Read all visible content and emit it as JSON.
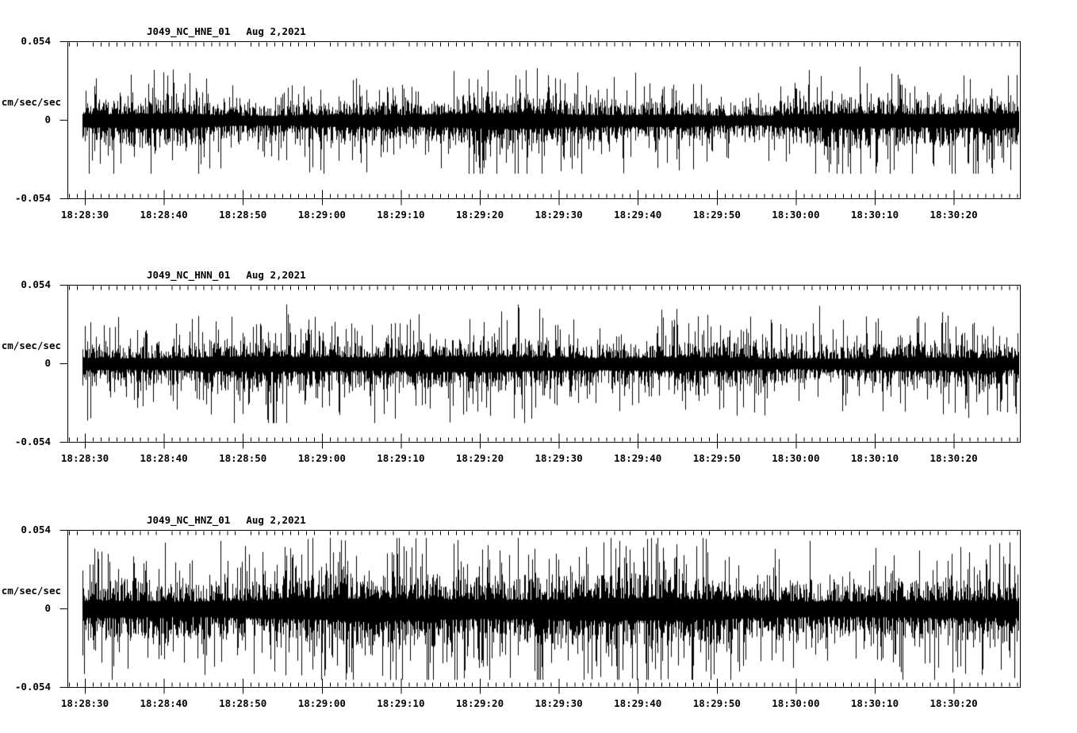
{
  "figure": {
    "background": "#ffffff",
    "ink_color": "#000000"
  },
  "chart_data": {
    "type": "line",
    "subtype": "seismogram-noise-multipanel",
    "panel_count": 3,
    "grid": "off",
    "legend": "none",
    "shared_x": {
      "tick_labels": [
        "18:28:30",
        "18:28:40",
        "18:28:50",
        "18:29:00",
        "18:29:10",
        "18:29:20",
        "18:29:30",
        "18:29:40",
        "18:29:50",
        "18:30:00",
        "18:30:10",
        "18:30:20"
      ],
      "major_interval_sec": 10,
      "minor_interval_sec": 1,
      "window_start": "18:28:28",
      "window_end": "18:30:29"
    },
    "shared_y": {
      "units_label": "cm/sec/sec",
      "tick_labels": [
        "0.054",
        "0",
        "-0.054"
      ],
      "ylim": [
        -0.054,
        0.054
      ]
    },
    "panels": [
      {
        "title": "J049_NC_HNE_01",
        "date_label": "Aug 2,2021",
        "noise_model": {
          "seed": 101,
          "core_amplitude": 0.0085,
          "spike_amplitude": 0.024,
          "spike_probability": 0.32,
          "clip": 0.037,
          "down_skew": 1.22,
          "trace_start_frac": 0.015,
          "envelope": [
            {
              "amp": 0.16,
              "cycles": 2.3,
              "phase": 1.2
            },
            {
              "amp": 0.11,
              "cycles": 5.7,
              "phase": 4.0
            }
          ]
        },
        "notable_spikes": [
          {
            "x_frac": 0.055,
            "value": -0.03
          },
          {
            "x_frac": 0.405,
            "value": 0.034
          },
          {
            "x_frac": 0.47,
            "value": 0.031
          },
          {
            "x_frac": 0.8,
            "value": -0.036
          }
        ]
      },
      {
        "title": "J049_NC_HNN_01",
        "date_label": "Aug 2,2021",
        "noise_model": {
          "seed": 202,
          "core_amplitude": 0.0092,
          "spike_amplitude": 0.026,
          "spike_probability": 0.32,
          "clip": 0.041,
          "down_skew": 1.15,
          "trace_start_frac": 0.015,
          "envelope": [
            {
              "amp": 0.12,
              "cycles": 1.1,
              "phase": -0.8
            },
            {
              "amp": 0.1,
              "cycles": 4.3,
              "phase": 2.6
            }
          ]
        },
        "notable_spikes": [
          {
            "x_frac": 0.38,
            "value": -0.031
          },
          {
            "x_frac": 0.43,
            "value": -0.033
          },
          {
            "x_frac": 0.495,
            "value": 0.038
          },
          {
            "x_frac": 0.79,
            "value": 0.04
          },
          {
            "x_frac": 0.92,
            "value": -0.035
          }
        ]
      },
      {
        "title": "J049_NC_HNZ_01",
        "date_label": "Aug 2,2021",
        "noise_model": {
          "seed": 303,
          "core_amplitude": 0.013,
          "spike_amplitude": 0.034,
          "spike_probability": 0.38,
          "clip": 0.049,
          "down_skew": 1.12,
          "trace_start_frac": 0.015,
          "envelope": [
            {
              "amp": 0.15,
              "cycles": 0.9,
              "phase": -1.0
            },
            {
              "amp": 0.1,
              "cycles": 3.1,
              "phase": 2.0
            }
          ]
        },
        "notable_spikes": [
          {
            "x_frac": 0.16,
            "value": 0.047
          },
          {
            "x_frac": 0.245,
            "value": -0.046
          },
          {
            "x_frac": 0.27,
            "value": -0.042
          },
          {
            "x_frac": 0.405,
            "value": 0.045
          },
          {
            "x_frac": 0.416,
            "value": -0.048
          },
          {
            "x_frac": 0.56,
            "value": -0.047
          },
          {
            "x_frac": 0.78,
            "value": 0.047
          },
          {
            "x_frac": 0.93,
            "value": -0.044
          },
          {
            "x_frac": 0.99,
            "value": 0.046
          }
        ]
      }
    ]
  }
}
